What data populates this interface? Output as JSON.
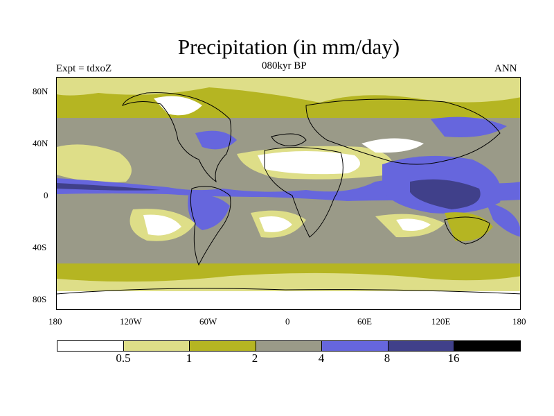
{
  "title": "Precipitation (in mm/day)",
  "subtitle_left": "Expt = tdxoZ",
  "subtitle_center": "080kyr BP",
  "subtitle_right": "ANN",
  "lat_ticks": [
    "80N",
    "40N",
    "0",
    "40S",
    "80S"
  ],
  "lon_ticks": [
    "180",
    "120W",
    "60W",
    "0",
    "60E",
    "120E",
    "180"
  ],
  "colorbar": {
    "colors": [
      "#ffffff",
      "#dede88",
      "#b5b522",
      "#9a9a88",
      "#6666dd",
      "#40408a",
      "#000000"
    ],
    "labels": [
      "0.5",
      "1",
      "2",
      "4",
      "8",
      "16"
    ]
  }
}
